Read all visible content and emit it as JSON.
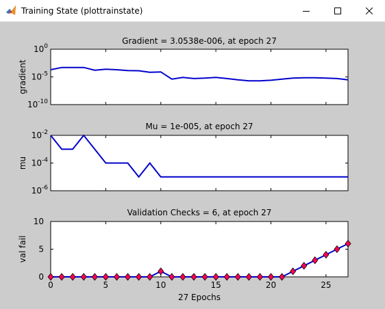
{
  "window": {
    "title": "Training State (plottrainstate)",
    "controls": [
      "minimize",
      "maximize",
      "close"
    ]
  },
  "chart_data": [
    {
      "type": "line",
      "title": "Gradient = 3.0538e-006, at epoch 27",
      "ylabel": "gradient",
      "xlabel": "",
      "yscale": "log",
      "ylim": [
        1e-10,
        1
      ],
      "xlim": [
        0,
        27
      ],
      "ytick_labels": [
        {
          "base": "10",
          "exp": "0",
          "value": 1
        },
        {
          "base": "10",
          "exp": "-5",
          "value": 1e-05
        },
        {
          "base": "10",
          "exp": "-10",
          "value": 1e-10
        }
      ],
      "xtick_labels": [],
      "color": "#0000cc",
      "x": [
        0,
        1,
        2,
        3,
        4,
        5,
        6,
        7,
        8,
        9,
        10,
        11,
        12,
        13,
        14,
        15,
        16,
        17,
        18,
        19,
        20,
        21,
        22,
        23,
        24,
        25,
        26,
        27
      ],
      "values": [
        0.0002,
        0.0005,
        0.0005,
        0.0005,
        0.00016,
        0.00025,
        0.0002,
        0.00014,
        0.00013,
        7e-05,
        8e-05,
        4e-06,
        8e-06,
        5e-06,
        6e-06,
        8e-06,
        5e-06,
        3e-06,
        2e-06,
        2e-06,
        2.5e-06,
        4e-06,
        6e-06,
        7e-06,
        7e-06,
        6e-06,
        5e-06,
        3.0538e-06
      ]
    },
    {
      "type": "line",
      "title": "Mu = 1e-005, at epoch 27",
      "ylabel": "mu",
      "xlabel": "",
      "yscale": "log",
      "ylim": [
        1e-06,
        0.01
      ],
      "xlim": [
        0,
        27
      ],
      "ytick_labels": [
        {
          "base": "10",
          "exp": "-2",
          "value": 0.01
        },
        {
          "base": "10",
          "exp": "-4",
          "value": 0.0001
        },
        {
          "base": "10",
          "exp": "-6",
          "value": 1e-06
        }
      ],
      "xtick_labels": [],
      "color": "#0000cc",
      "x": [
        0,
        1,
        2,
        3,
        4,
        5,
        6,
        7,
        8,
        9,
        10,
        11,
        12,
        13,
        14,
        15,
        16,
        17,
        18,
        19,
        20,
        21,
        22,
        23,
        24,
        25,
        26,
        27
      ],
      "values": [
        0.01,
        0.001,
        0.001,
        0.01,
        0.001,
        0.0001,
        0.0001,
        0.0001,
        1e-05,
        0.0001,
        1e-05,
        1e-05,
        1e-05,
        1e-05,
        1e-05,
        1e-05,
        1e-05,
        1e-05,
        1e-05,
        1e-05,
        1e-05,
        1e-05,
        1e-05,
        1e-05,
        1e-05,
        1e-05,
        1e-05,
        1e-05
      ]
    },
    {
      "type": "line",
      "title": "Validation Checks = 6, at epoch 27",
      "ylabel": "val fail",
      "xlabel": "27 Epochs",
      "yscale": "linear",
      "ylim": [
        0,
        10
      ],
      "xlim": [
        0,
        27
      ],
      "ytick_labels": [
        {
          "base": "10",
          "exp": "",
          "value": 10
        },
        {
          "base": "5",
          "exp": "",
          "value": 5
        },
        {
          "base": "0",
          "exp": "",
          "value": 0
        }
      ],
      "xtick_labels": [
        "0",
        "5",
        "10",
        "15",
        "20",
        "25"
      ],
      "xtick_values": [
        0,
        5,
        10,
        15,
        20,
        25
      ],
      "color": "#0000cc",
      "marker_color": "#ff0055",
      "x": [
        0,
        1,
        2,
        3,
        4,
        5,
        6,
        7,
        8,
        9,
        10,
        11,
        12,
        13,
        14,
        15,
        16,
        17,
        18,
        19,
        20,
        21,
        22,
        23,
        24,
        25,
        26,
        27
      ],
      "values": [
        0,
        0,
        0,
        0,
        0,
        0,
        0,
        0,
        0,
        0,
        1,
        0,
        0,
        0,
        0,
        0,
        0,
        0,
        0,
        0,
        0,
        0,
        1,
        2,
        3,
        4,
        5,
        6
      ]
    }
  ]
}
